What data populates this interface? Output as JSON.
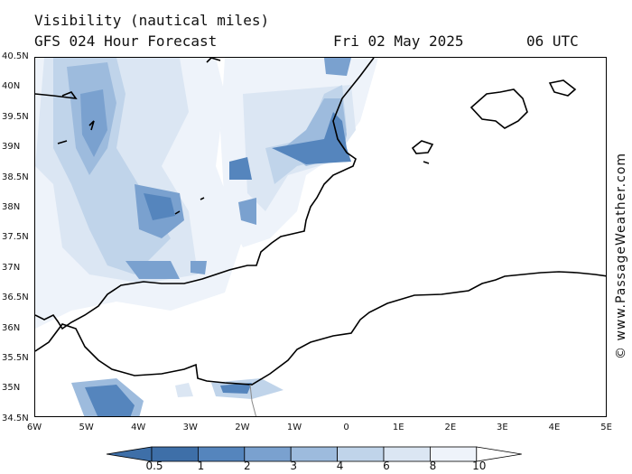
{
  "header": {
    "title": "Visibility (nautical miles)",
    "model": "GFS 024 Hour Forecast",
    "date": "Fri 02 May 2025",
    "time": "06 UTC"
  },
  "axes": {
    "lat_labels": [
      "40.5N",
      "40N",
      "39.5N",
      "39N",
      "38.5N",
      "38N",
      "37.5N",
      "37N",
      "36.5N",
      "36N",
      "35.5N",
      "35N",
      "34.5N"
    ],
    "lon_labels": [
      "6W",
      "5W",
      "4W",
      "3W",
      "2W",
      "1W",
      "0",
      "1E",
      "2E",
      "3E",
      "4E",
      "5E"
    ]
  },
  "credit": "© www.PassageWeather.com",
  "colorbar": {
    "labels": [
      "0.5",
      "1",
      "2",
      "3",
      "4",
      "6",
      "8",
      "10"
    ],
    "colors": [
      "#3e6fa8",
      "#5585bd",
      "#7aa1cf",
      "#9dbbdd",
      "#c0d4ea",
      "#dbe6f3",
      "#eef3fa",
      "#ffffff"
    ]
  },
  "colors": {
    "land_outline": "#000000",
    "border": "#888888"
  }
}
